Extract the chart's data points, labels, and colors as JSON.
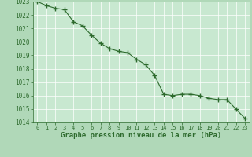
{
  "hours": [
    0,
    1,
    2,
    3,
    4,
    5,
    6,
    7,
    8,
    9,
    10,
    11,
    12,
    13,
    14,
    15,
    16,
    17,
    18,
    19,
    20,
    21,
    22,
    23
  ],
  "pressure": [
    1023.0,
    1022.7,
    1022.5,
    1022.4,
    1021.5,
    1021.2,
    1020.5,
    1019.9,
    1019.5,
    1019.3,
    1019.2,
    1018.7,
    1018.3,
    1017.5,
    1016.1,
    1016.0,
    1016.1,
    1016.1,
    1016.0,
    1015.8,
    1015.7,
    1015.7,
    1015.0,
    1014.3
  ],
  "ylim": [
    1014,
    1023
  ],
  "yticks": [
    1014,
    1015,
    1016,
    1017,
    1018,
    1019,
    1020,
    1021,
    1022,
    1023
  ],
  "line_color": "#2d6a2d",
  "marker_color": "#2d6a2d",
  "bg_plot": "#c8e8d0",
  "bg_fig": "#b0d8b8",
  "grid_color": "#ffffff",
  "xlabel": "Graphe pression niveau de la mer (hPa)",
  "xlabel_color": "#2d6a2d",
  "tick_color": "#2d6a2d"
}
